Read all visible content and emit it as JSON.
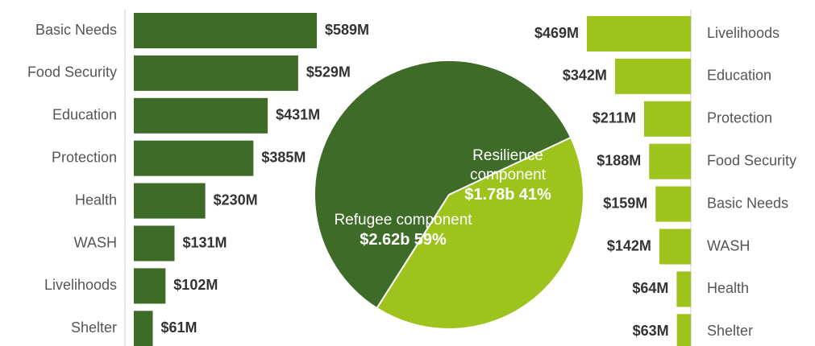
{
  "chart_data": [
    {
      "type": "bar",
      "orientation": "horizontal",
      "categories": [
        "Basic Needs",
        "Food Security",
        "Education",
        "Protection",
        "Health",
        "WASH",
        "Livelihoods",
        "Shelter"
      ],
      "values": [
        589,
        529,
        431,
        385,
        230,
        131,
        102,
        61
      ],
      "value_labels": [
        "$589M",
        "$529M",
        "$431M",
        "$385M",
        "$230M",
        "$131M",
        "$102M",
        "$61M"
      ],
      "color": "#3e6b27"
    },
    {
      "type": "pie",
      "categories": [
        "Refugee component",
        "Resilience component"
      ],
      "values": [
        59,
        41
      ],
      "value_labels": [
        "59%",
        "41%"
      ],
      "amount_labels": [
        "$2.62b",
        "$1.78b"
      ],
      "colors": [
        "#3e6b27",
        "#9dc31c"
      ]
    },
    {
      "type": "bar",
      "orientation": "horizontal",
      "direction": "left",
      "categories": [
        "Livelihoods",
        "Education",
        "Protection",
        "Food Security",
        "Basic Needs",
        "WASH",
        "Health",
        "Shelter"
      ],
      "values": [
        469,
        342,
        211,
        188,
        159,
        142,
        64,
        63
      ],
      "value_labels": [
        "$469M",
        "$342M",
        "$211M",
        "$188M",
        "$159M",
        "$142M",
        "$64M",
        "$63M"
      ],
      "color": "#9dc31c"
    }
  ]
}
